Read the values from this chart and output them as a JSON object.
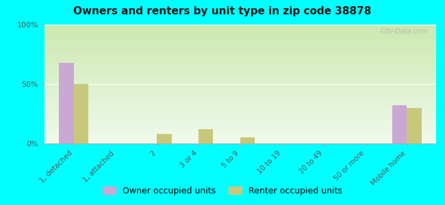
{
  "title": "Owners and renters by unit type in zip code 38878",
  "categories": [
    "1, detached",
    "1, attached",
    "2",
    "3 or 4",
    "5 to 9",
    "10 to 19",
    "20 to 49",
    "50 or more",
    "Mobile home"
  ],
  "owner_values": [
    68,
    0,
    0,
    0,
    0,
    0,
    0,
    0,
    32
  ],
  "renter_values": [
    50,
    0,
    8,
    12,
    5,
    0,
    0,
    0,
    30
  ],
  "owner_color": "#c9a8d4",
  "renter_color": "#c8c87a",
  "bar_width": 0.35,
  "ylim": [
    0,
    100
  ],
  "yticks": [
    0,
    50,
    100
  ],
  "ytick_labels": [
    "0%",
    "50%",
    "100%"
  ],
  "background": "#00ffff",
  "plot_bg_top": "#cce8b0",
  "plot_bg_bottom": "#f0faec",
  "watermark": "City-Data.com",
  "legend_owner": "Owner occupied units",
  "legend_renter": "Renter occupied units"
}
